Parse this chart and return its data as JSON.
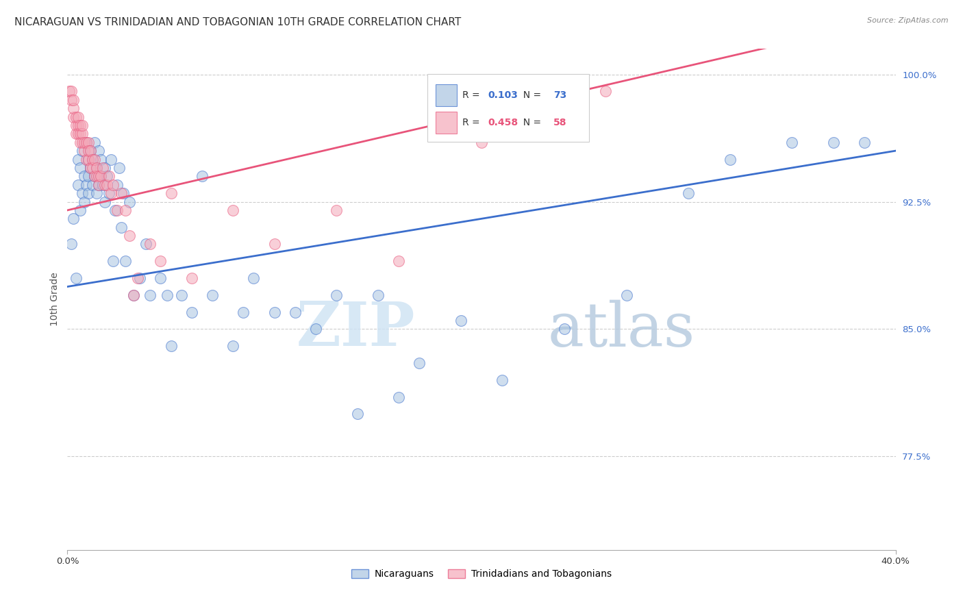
{
  "title": "NICARAGUAN VS TRINIDADIAN AND TOBAGONIAN 10TH GRADE CORRELATION CHART",
  "source": "Source: ZipAtlas.com",
  "ylabel": "10th Grade",
  "xlim": [
    0.0,
    0.4
  ],
  "ylim": [
    0.72,
    1.015
  ],
  "yticks_right": [
    0.775,
    0.85,
    0.925,
    1.0
  ],
  "ytick_right_labels": [
    "77.5%",
    "85.0%",
    "92.5%",
    "100.0%"
  ],
  "blue_color": "#A8C4E0",
  "pink_color": "#F4A8B8",
  "blue_line_color": "#3B6ECC",
  "pink_line_color": "#E8547A",
  "legend_r_blue": "0.103",
  "legend_n_blue": "73",
  "legend_r_pink": "0.458",
  "legend_n_pink": "58",
  "legend_label_blue": "Nicaraguans",
  "legend_label_pink": "Trinidadians and Tobagonians",
  "watermark_zip": "ZIP",
  "watermark_atlas": "atlas",
  "grid_color": "#CCCCCC",
  "background_color": "#FFFFFF",
  "title_fontsize": 11,
  "axis_label_fontsize": 10,
  "tick_fontsize": 9.5,
  "blue_scatter_x": [
    0.002,
    0.003,
    0.004,
    0.005,
    0.005,
    0.006,
    0.006,
    0.007,
    0.007,
    0.008,
    0.008,
    0.009,
    0.009,
    0.01,
    0.01,
    0.01,
    0.011,
    0.011,
    0.012,
    0.012,
    0.013,
    0.013,
    0.014,
    0.014,
    0.015,
    0.015,
    0.016,
    0.016,
    0.017,
    0.018,
    0.018,
    0.019,
    0.02,
    0.021,
    0.022,
    0.023,
    0.024,
    0.025,
    0.026,
    0.027,
    0.028,
    0.03,
    0.032,
    0.035,
    0.038,
    0.04,
    0.045,
    0.05,
    0.055,
    0.06,
    0.07,
    0.08,
    0.09,
    0.1,
    0.11,
    0.12,
    0.13,
    0.15,
    0.17,
    0.19,
    0.21,
    0.24,
    0.27,
    0.3,
    0.32,
    0.35,
    0.37,
    0.385,
    0.048,
    0.065,
    0.085,
    0.14,
    0.16
  ],
  "blue_scatter_y": [
    0.9,
    0.915,
    0.88,
    0.935,
    0.95,
    0.92,
    0.945,
    0.93,
    0.955,
    0.925,
    0.94,
    0.935,
    0.96,
    0.94,
    0.95,
    0.93,
    0.945,
    0.955,
    0.935,
    0.95,
    0.94,
    0.96,
    0.93,
    0.945,
    0.955,
    0.935,
    0.94,
    0.95,
    0.935,
    0.945,
    0.925,
    0.94,
    0.93,
    0.95,
    0.89,
    0.92,
    0.935,
    0.945,
    0.91,
    0.93,
    0.89,
    0.925,
    0.87,
    0.88,
    0.9,
    0.87,
    0.88,
    0.84,
    0.87,
    0.86,
    0.87,
    0.84,
    0.88,
    0.86,
    0.86,
    0.85,
    0.87,
    0.87,
    0.83,
    0.855,
    0.82,
    0.85,
    0.87,
    0.93,
    0.95,
    0.96,
    0.96,
    0.96,
    0.87,
    0.94,
    0.86,
    0.8,
    0.81
  ],
  "pink_scatter_x": [
    0.001,
    0.002,
    0.002,
    0.003,
    0.003,
    0.003,
    0.004,
    0.004,
    0.004,
    0.005,
    0.005,
    0.005,
    0.006,
    0.006,
    0.006,
    0.007,
    0.007,
    0.007,
    0.008,
    0.008,
    0.009,
    0.009,
    0.01,
    0.01,
    0.01,
    0.011,
    0.011,
    0.012,
    0.012,
    0.013,
    0.013,
    0.014,
    0.014,
    0.015,
    0.015,
    0.016,
    0.017,
    0.018,
    0.019,
    0.02,
    0.021,
    0.022,
    0.024,
    0.026,
    0.028,
    0.03,
    0.032,
    0.034,
    0.04,
    0.045,
    0.05,
    0.06,
    0.08,
    0.1,
    0.13,
    0.16,
    0.2,
    0.26
  ],
  "pink_scatter_y": [
    0.99,
    0.99,
    0.985,
    0.975,
    0.98,
    0.985,
    0.965,
    0.97,
    0.975,
    0.97,
    0.975,
    0.965,
    0.965,
    0.96,
    0.97,
    0.96,
    0.965,
    0.97,
    0.955,
    0.96,
    0.95,
    0.96,
    0.95,
    0.96,
    0.955,
    0.945,
    0.955,
    0.95,
    0.945,
    0.94,
    0.95,
    0.94,
    0.945,
    0.94,
    0.935,
    0.94,
    0.945,
    0.935,
    0.935,
    0.94,
    0.93,
    0.935,
    0.92,
    0.93,
    0.92,
    0.905,
    0.87,
    0.88,
    0.9,
    0.89,
    0.93,
    0.88,
    0.92,
    0.9,
    0.92,
    0.89,
    0.96,
    0.99
  ]
}
